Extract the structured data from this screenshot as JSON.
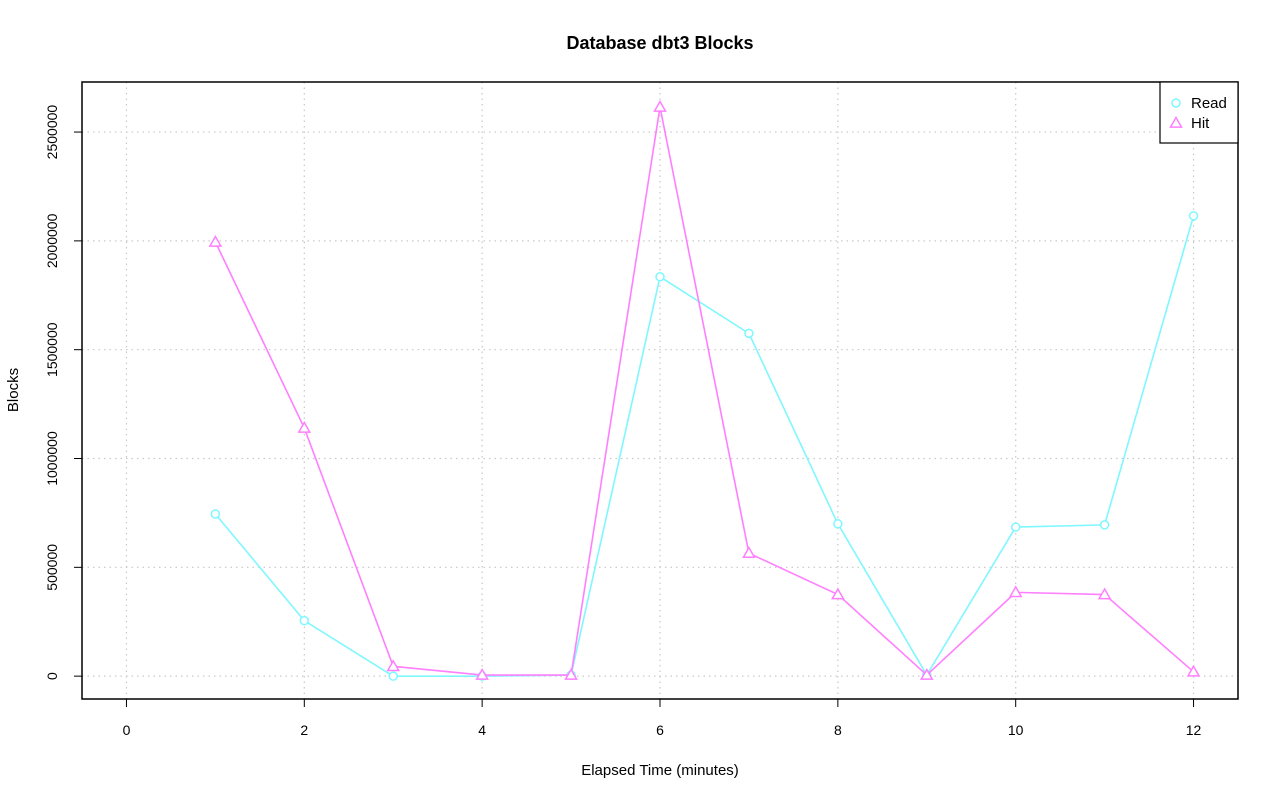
{
  "chart_data": {
    "type": "line",
    "title": "Database dbt3 Blocks",
    "xlabel": "Elapsed Time (minutes)",
    "ylabel": "Blocks",
    "xlim": [
      -0.5,
      12.5
    ],
    "ylim": [
      -105000,
      2730000
    ],
    "x_ticks": [
      0,
      2,
      4,
      6,
      8,
      10,
      12
    ],
    "y_ticks": [
      0,
      500000,
      1000000,
      1500000,
      2000000,
      2500000
    ],
    "grid": true,
    "legend_position": "top-right",
    "x": [
      1,
      2,
      3,
      4,
      5,
      6,
      7,
      8,
      9,
      10,
      11,
      12
    ],
    "series": [
      {
        "name": "Read",
        "color": "#7ff7ff",
        "marker": "circle",
        "values": [
          745000,
          255000,
          0,
          0,
          5000,
          1835000,
          1575000,
          700000,
          5000,
          685000,
          695000,
          2115000
        ]
      },
      {
        "name": "Hit",
        "color": "#ff7fff",
        "marker": "triangle",
        "values": [
          1995000,
          1140000,
          45000,
          5000,
          5000,
          2615000,
          565000,
          375000,
          5000,
          385000,
          375000,
          20000
        ]
      }
    ]
  }
}
